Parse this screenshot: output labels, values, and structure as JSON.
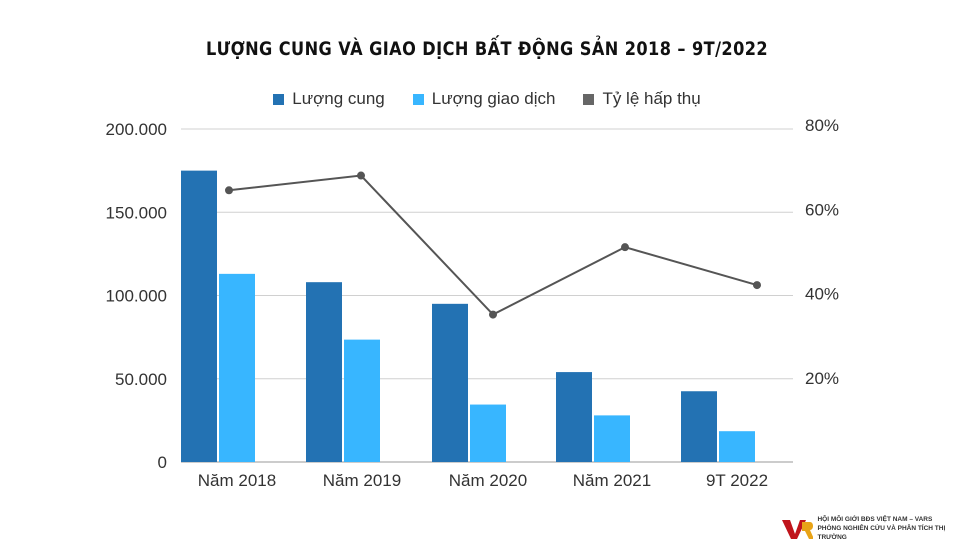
{
  "chart_data": {
    "type": "bar",
    "title": "LƯỢNG CUNG VÀ GIAO DỊCH BẤT ĐỘNG SẢN 2018 – 9T/2022",
    "categories": [
      "Năm 2018",
      "Năm 2019",
      "Năm 2020",
      "Năm 2021",
      "9T 2022"
    ],
    "series": [
      {
        "name": "Lượng cung",
        "type": "bar",
        "axis": "left",
        "color": "#2372b3",
        "values": [
          175000,
          108000,
          95000,
          54000,
          42500
        ]
      },
      {
        "name": "Lượng giao dịch",
        "type": "bar",
        "axis": "left",
        "color": "#38b6ff",
        "values": [
          113000,
          73500,
          34500,
          28000,
          18500
        ]
      },
      {
        "name": "Tỷ lệ hấp thụ",
        "type": "line",
        "axis": "right",
        "color": "#555555",
        "values": [
          64.5,
          68,
          35,
          51,
          42
        ]
      }
    ],
    "left_axis": {
      "ylim": [
        0,
        200000
      ],
      "ticks": [
        "0",
        "50.000",
        "100.000",
        "150.000",
        "200.000"
      ],
      "tick_values": [
        0,
        50000,
        100000,
        150000,
        200000
      ]
    },
    "right_axis": {
      "ylim": [
        0,
        80
      ],
      "ticks": [
        "20%",
        "40%",
        "60%",
        "80%"
      ],
      "tick_values": [
        20,
        40,
        60,
        80
      ]
    },
    "legend_placement": "top-center",
    "grid": true
  },
  "logo": {
    "line1": "HỘI MÔI GIỚI BĐS VIỆT NAM – VARS",
    "line2": "PHÒNG NGHIÊN CỨU VÀ PHÂN TÍCH THỊ TRƯỜNG"
  }
}
